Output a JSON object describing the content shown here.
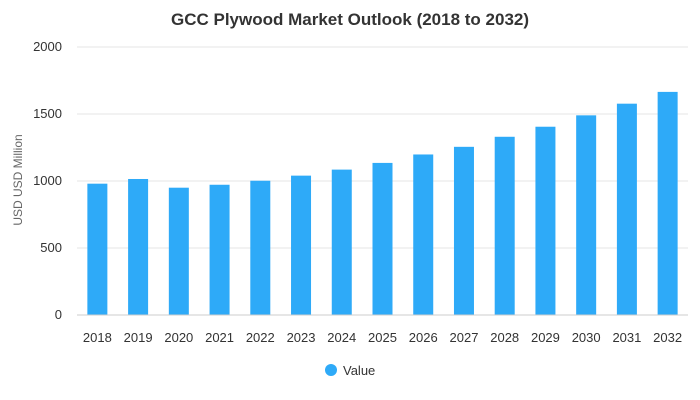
{
  "chart_data": {
    "type": "bar",
    "title": "GCC Plywood Market Outlook (2018 to 2032)",
    "xlabel": "",
    "ylabel": "USD USD Million",
    "ylim": [
      0,
      2000
    ],
    "yticks": [
      0,
      500,
      1000,
      1500,
      2000
    ],
    "categories": [
      "2018",
      "2019",
      "2020",
      "2021",
      "2022",
      "2023",
      "2024",
      "2025",
      "2026",
      "2027",
      "2028",
      "2029",
      "2030",
      "2031",
      "2032"
    ],
    "series": [
      {
        "name": "Value",
        "color": "#2eaaf8",
        "values": [
          980,
          1015,
          950,
          972,
          1002,
          1040,
          1085,
          1135,
          1198,
          1255,
          1330,
          1405,
          1490,
          1577,
          1665
        ]
      }
    ],
    "grid": true,
    "legend": "bottom-center"
  }
}
